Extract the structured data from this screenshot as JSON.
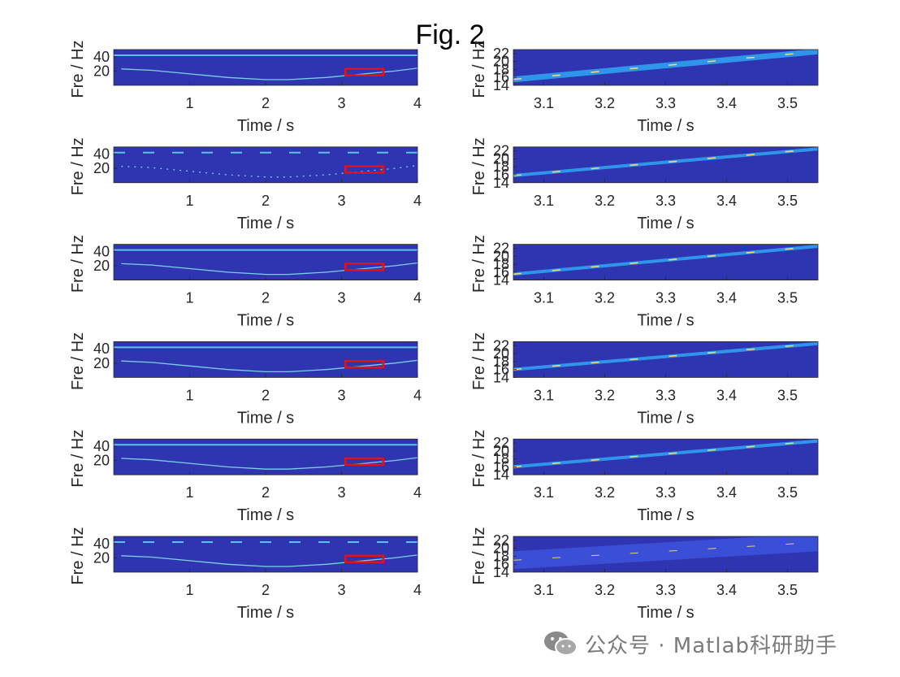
{
  "figure_title": "Fig. 2",
  "watermark": {
    "text": "公众号 · Matlab科研助手",
    "icon": "wechat-icon"
  },
  "colors": {
    "background": "#2f34b0",
    "ridge_left": "#7fe3f0",
    "ridge_right_a": "#2ea7f5",
    "ridge_right_b": "#ffe070",
    "roi_box": "#e0121a",
    "axis": "#262626"
  },
  "chart_data": [
    {
      "type": "heatmap",
      "panel": "left",
      "row": 1,
      "xlabel": "Time / s",
      "ylabel": "Fre / Hz",
      "xlim": [
        0,
        4
      ],
      "ylim": [
        0,
        50
      ],
      "xticks": [
        "1",
        "2",
        "3",
        "4"
      ],
      "yticks": [
        "20",
        "40"
      ],
      "colormap": "parula",
      "ridges": [
        {
          "x": [
            0.1,
            0.5,
            1,
            1.5,
            2,
            2.3,
            2.8,
            3.3,
            3.7,
            4
          ],
          "y": [
            23,
            21,
            16,
            11,
            8,
            8,
            11,
            16,
            20,
            24
          ]
        },
        {
          "x": [
            0,
            4
          ],
          "y": [
            42,
            42
          ]
        }
      ],
      "roi": {
        "x": [
          3.05,
          3.55
        ],
        "y": [
          14,
          23
        ]
      }
    },
    {
      "type": "heatmap",
      "panel": "left",
      "row": 2,
      "xlabel": "Time / s",
      "ylabel": "Fre / Hz",
      "xlim": [
        0,
        4
      ],
      "ylim": [
        0,
        50
      ],
      "xticks": [
        "1",
        "2",
        "3",
        "4"
      ],
      "yticks": [
        "20",
        "40"
      ],
      "colormap": "parula",
      "ridges": [
        {
          "x": [
            0.1,
            0.5,
            1,
            1.5,
            2,
            2.3,
            2.8,
            3.3,
            3.7,
            4
          ],
          "y": [
            23,
            21,
            16,
            11,
            8,
            8,
            11,
            16,
            20,
            24
          ]
        },
        {
          "x": [
            0,
            4
          ],
          "y": [
            42,
            42
          ]
        }
      ],
      "roi": {
        "x": [
          3.05,
          3.55
        ],
        "y": [
          14,
          23
        ]
      }
    },
    {
      "type": "heatmap",
      "panel": "left",
      "row": 3,
      "xlabel": "Time / s",
      "ylabel": "Fre / Hz",
      "xlim": [
        0,
        4
      ],
      "ylim": [
        0,
        50
      ],
      "xticks": [
        "1",
        "2",
        "3",
        "4"
      ],
      "yticks": [
        "20",
        "40"
      ],
      "colormap": "parula",
      "ridges": [
        {
          "x": [
            0.1,
            0.5,
            1,
            1.5,
            2,
            2.3,
            2.8,
            3.3,
            3.7,
            4
          ],
          "y": [
            23,
            21,
            16,
            11,
            8,
            8,
            11,
            16,
            20,
            24
          ]
        },
        {
          "x": [
            0,
            4
          ],
          "y": [
            42,
            42
          ]
        }
      ],
      "roi": {
        "x": [
          3.05,
          3.55
        ],
        "y": [
          14,
          23
        ]
      }
    },
    {
      "type": "heatmap",
      "panel": "left",
      "row": 4,
      "xlabel": "Time / s",
      "ylabel": "Fre / Hz",
      "xlim": [
        0,
        4
      ],
      "ylim": [
        0,
        50
      ],
      "xticks": [
        "1",
        "2",
        "3",
        "4"
      ],
      "yticks": [
        "20",
        "40"
      ],
      "colormap": "parula",
      "ridges": [
        {
          "x": [
            0.1,
            0.5,
            1,
            1.5,
            2,
            2.3,
            2.8,
            3.3,
            3.7,
            4
          ],
          "y": [
            23,
            21,
            16,
            11,
            8,
            8,
            11,
            16,
            20,
            24
          ]
        },
        {
          "x": [
            0,
            4
          ],
          "y": [
            42,
            42
          ]
        }
      ],
      "roi": {
        "x": [
          3.05,
          3.55
        ],
        "y": [
          14,
          23
        ]
      }
    },
    {
      "type": "heatmap",
      "panel": "left",
      "row": 5,
      "xlabel": "Time / s",
      "ylabel": "Fre / Hz",
      "xlim": [
        0,
        4
      ],
      "ylim": [
        0,
        50
      ],
      "xticks": [
        "1",
        "2",
        "3",
        "4"
      ],
      "yticks": [
        "20",
        "40"
      ],
      "colormap": "parula",
      "ridges": [
        {
          "x": [
            0.1,
            0.5,
            1,
            1.5,
            2,
            2.3,
            2.8,
            3.3,
            3.7,
            4
          ],
          "y": [
            23,
            21,
            16,
            11,
            8,
            8,
            11,
            16,
            20,
            24
          ]
        },
        {
          "x": [
            0,
            4
          ],
          "y": [
            42,
            42
          ]
        }
      ],
      "roi": {
        "x": [
          3.05,
          3.55
        ],
        "y": [
          14,
          23
        ]
      }
    },
    {
      "type": "heatmap",
      "panel": "left",
      "row": 6,
      "xlabel": "Time / s",
      "ylabel": "Fre / Hz",
      "xlim": [
        0,
        4
      ],
      "ylim": [
        0,
        50
      ],
      "xticks": [
        "1",
        "2",
        "3",
        "4"
      ],
      "yticks": [
        "20",
        "40"
      ],
      "colormap": "parula",
      "ridges": [
        {
          "x": [
            0.1,
            0.5,
            1,
            1.5,
            2,
            2.3,
            2.8,
            3.3,
            3.7,
            4
          ],
          "y": [
            23,
            21,
            16,
            11,
            8,
            8,
            11,
            16,
            20,
            24
          ]
        },
        {
          "x": [
            0,
            4
          ],
          "y": [
            42,
            42
          ]
        }
      ],
      "roi": {
        "x": [
          3.05,
          3.55
        ],
        "y": [
          14,
          23
        ]
      }
    },
    {
      "type": "heatmap",
      "panel": "right",
      "row": 1,
      "xlabel": "Time / s",
      "ylabel": "Fre / Hz",
      "xlim": [
        3.05,
        3.55
      ],
      "ylim": [
        14,
        23
      ],
      "xticks": [
        "3.1",
        "3.2",
        "3.3",
        "3.4",
        "3.5"
      ],
      "yticks": [
        "14",
        "16",
        "18",
        "20",
        "22"
      ],
      "colormap": "parula",
      "ridges": [
        {
          "x": [
            3.05,
            3.55
          ],
          "y": [
            15.5,
            22.5
          ]
        }
      ]
    },
    {
      "type": "heatmap",
      "panel": "right",
      "row": 2,
      "xlabel": "Time / s",
      "ylabel": "Fre / Hz",
      "xlim": [
        3.05,
        3.55
      ],
      "ylim": [
        14,
        23
      ],
      "xticks": [
        "3.1",
        "3.2",
        "3.3",
        "3.4",
        "3.5"
      ],
      "yticks": [
        "14",
        "16",
        "18",
        "20",
        "22"
      ],
      "colormap": "parula",
      "ridges": [
        {
          "x": [
            3.05,
            3.55
          ],
          "y": [
            15.8,
            22.5
          ]
        }
      ]
    },
    {
      "type": "heatmap",
      "panel": "right",
      "row": 3,
      "xlabel": "Time / s",
      "ylabel": "Fre / Hz",
      "xlim": [
        3.05,
        3.55
      ],
      "ylim": [
        14,
        23
      ],
      "xticks": [
        "3.1",
        "3.2",
        "3.3",
        "3.4",
        "3.5"
      ],
      "yticks": [
        "14",
        "16",
        "18",
        "20",
        "22"
      ],
      "colormap": "parula",
      "ridges": [
        {
          "x": [
            3.05,
            3.55
          ],
          "y": [
            15.5,
            22.5
          ]
        }
      ]
    },
    {
      "type": "heatmap",
      "panel": "right",
      "row": 4,
      "xlabel": "Time / s",
      "ylabel": "Fre / Hz",
      "xlim": [
        3.05,
        3.55
      ],
      "ylim": [
        14,
        23
      ],
      "xticks": [
        "3.1",
        "3.2",
        "3.3",
        "3.4",
        "3.5"
      ],
      "yticks": [
        "14",
        "16",
        "18",
        "20",
        "22"
      ],
      "colormap": "parula",
      "ridges": [
        {
          "x": [
            3.05,
            3.55
          ],
          "y": [
            16.0,
            22.5
          ]
        }
      ]
    },
    {
      "type": "heatmap",
      "panel": "right",
      "row": 5,
      "xlabel": "Time / s",
      "ylabel": "Fre / Hz",
      "xlim": [
        3.05,
        3.55
      ],
      "ylim": [
        14,
        23
      ],
      "xticks": [
        "3.1",
        "3.2",
        "3.3",
        "3.4",
        "3.5"
      ],
      "yticks": [
        "14",
        "16",
        "18",
        "20",
        "22"
      ],
      "colormap": "parula",
      "ridges": [
        {
          "x": [
            3.05,
            3.55
          ],
          "y": [
            16.0,
            22.5
          ]
        }
      ]
    },
    {
      "type": "heatmap",
      "panel": "right",
      "row": 6,
      "xlabel": "Time / s",
      "ylabel": "Fre / Hz",
      "xlim": [
        3.05,
        3.55
      ],
      "ylim": [
        14,
        23
      ],
      "xticks": [
        "3.1",
        "3.2",
        "3.3",
        "3.4",
        "3.5"
      ],
      "yticks": [
        "14",
        "16",
        "18",
        "20",
        "22"
      ],
      "colormap": "parula",
      "ridges": [
        {
          "x": [
            3.05,
            3.55
          ],
          "y": [
            17.0,
            21.5
          ]
        }
      ]
    }
  ]
}
